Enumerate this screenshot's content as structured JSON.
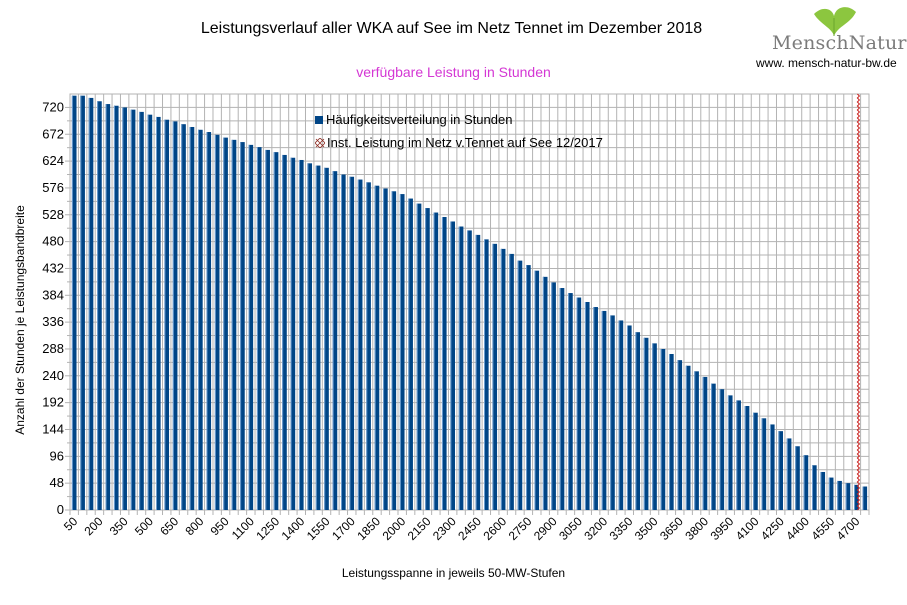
{
  "header": {
    "title": "Leistungsverlauf aller WKA auf See im Netz Tennet im Dezember 2018",
    "subtitle": "verfügbare Leistung in Stunden"
  },
  "logo": {
    "name": "MenschNatur",
    "url": "www. mensch-natur-bw.de",
    "leaf_color": "#8cc63f"
  },
  "chart_data": {
    "type": "bar",
    "title": "Leistungsverlauf aller WKA auf See im Netz Tennet im Dezember 2018",
    "subtitle": "verfügbare Leistung in Stunden",
    "xlabel": "Leistungsspanne in jeweils 50-MW-Stufen",
    "ylabel": "Anzahl der Stunden je Leistungsbandbreite",
    "ylim": [
      0,
      744
    ],
    "yticks": [
      0,
      48,
      96,
      144,
      192,
      240,
      288,
      336,
      384,
      432,
      480,
      528,
      576,
      624,
      672,
      720
    ],
    "grid": true,
    "legend_position": "top-center",
    "categories": [
      50,
      100,
      150,
      200,
      250,
      300,
      350,
      400,
      450,
      500,
      550,
      600,
      650,
      700,
      750,
      800,
      850,
      900,
      950,
      1000,
      1050,
      1100,
      1150,
      1200,
      1250,
      1300,
      1350,
      1400,
      1450,
      1500,
      1550,
      1600,
      1650,
      1700,
      1750,
      1800,
      1850,
      1900,
      1950,
      2000,
      2050,
      2100,
      2150,
      2200,
      2250,
      2300,
      2350,
      2400,
      2450,
      2500,
      2550,
      2600,
      2650,
      2700,
      2750,
      2800,
      2850,
      2900,
      2950,
      3000,
      3050,
      3100,
      3150,
      3200,
      3250,
      3300,
      3350,
      3400,
      3450,
      3500,
      3550,
      3600,
      3650,
      3700,
      3750,
      3800,
      3850,
      3900,
      3950,
      4000,
      4050,
      4100,
      4150,
      4200,
      4250,
      4300,
      4350,
      4400,
      4450,
      4500,
      4550,
      4600,
      4650,
      4700,
      4750
    ],
    "xtick_labels": [
      "50",
      "200",
      "350",
      "500",
      "650",
      "800",
      "950",
      "1100",
      "1250",
      "1400",
      "1550",
      "1700",
      "1850",
      "2000",
      "2150",
      "2300",
      "2450",
      "2600",
      "2750",
      "2900",
      "3050",
      "3200",
      "3350",
      "3500",
      "3650",
      "3800",
      "3950",
      "4100",
      "4250",
      "4400",
      "4550",
      "4700"
    ],
    "series": [
      {
        "name": "Häufigkeitsverteilung in Stunden",
        "color": "#004586",
        "values": [
          741,
          741,
          737,
          731,
          726,
          723,
          720,
          716,
          712,
          707,
          703,
          698,
          695,
          690,
          685,
          680,
          676,
          671,
          666,
          662,
          658,
          653,
          649,
          644,
          640,
          635,
          630,
          626,
          620,
          616,
          612,
          606,
          600,
          596,
          591,
          586,
          580,
          575,
          570,
          565,
          557,
          548,
          540,
          532,
          524,
          516,
          507,
          500,
          492,
          484,
          476,
          467,
          458,
          446,
          438,
          428,
          417,
          407,
          397,
          388,
          380,
          372,
          363,
          356,
          348,
          339,
          330,
          318,
          308,
          298,
          288,
          279,
          268,
          258,
          248,
          238,
          226,
          216,
          205,
          196,
          186,
          174,
          164,
          153,
          141,
          128,
          114,
          98,
          80,
          68,
          58,
          52,
          48,
          45,
          42
        ]
      },
      {
        "name": "Inst. Leistung im Netz v.Tennet auf See 12/2017",
        "color": "#c9211e",
        "marker": "x-line",
        "x_value": 4700
      }
    ]
  }
}
